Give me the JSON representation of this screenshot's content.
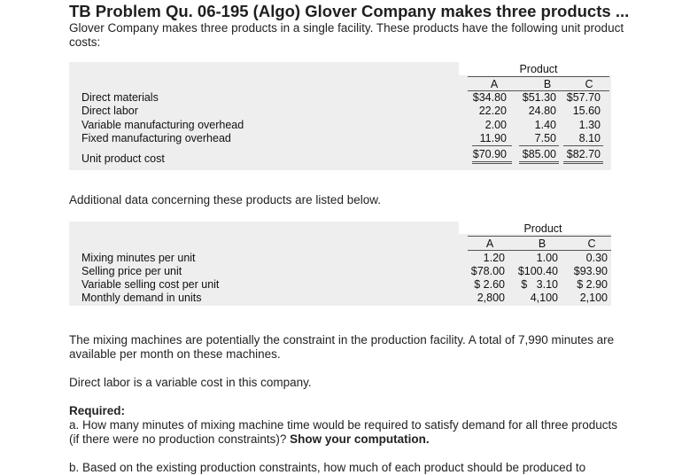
{
  "title": "TB Problem Qu. 06-195 (Algo) Glover Company makes three products ...",
  "intro": "Glover Company makes three products in a single facility. These products have the following unit product costs:",
  "table1": {
    "group_header": "Product",
    "columns": [
      "A",
      "B",
      "C"
    ],
    "rows": [
      {
        "label": "Direct materials",
        "values": [
          "$34.80",
          "$51.30",
          "$57.70"
        ]
      },
      {
        "label": "Direct labor",
        "values": [
          "22.20",
          "24.80",
          "15.60"
        ]
      },
      {
        "label": "Variable manufacturing overhead",
        "values": [
          "2.00",
          "1.40",
          "1.30"
        ]
      },
      {
        "label": "Fixed manufacturing overhead",
        "values": [
          "11.90",
          "7.50",
          "8.10"
        ]
      },
      {
        "label": "Unit product cost",
        "values": [
          "$70.90",
          "$85.00",
          "$82.70"
        ]
      }
    ]
  },
  "additional": "Additional data concerning these products are listed below.",
  "table2": {
    "group_header": "Product",
    "columns": [
      "A",
      "B",
      "C"
    ],
    "rows": [
      {
        "label": "Mixing minutes per unit",
        "values": [
          "1.20",
          "1.00",
          "0.30"
        ]
      },
      {
        "label": "Selling price per unit",
        "values": [
          "$78.00",
          "$100.40",
          "$93.90"
        ]
      },
      {
        "label": "Variable selling cost per unit",
        "values": [
          "$ 2.60",
          "$   3.10",
          "$ 2.90"
        ]
      },
      {
        "label": "Monthly demand in units",
        "values": [
          "2,800",
          "4,100",
          "2,100"
        ]
      }
    ]
  },
  "para1": "The mixing machines are potentially the constraint in the production facility. A total of 7,990 minutes are available per month on these machines.",
  "para2": "Direct labor is a variable cost in this company.",
  "required_label": "Required:",
  "req_a": "a. How many minutes of mixing machine time would be required to satisfy demand for all three products (if there were no production constraints)?",
  "req_a_bold": "Show your computation.",
  "req_b": "b. Based on the existing production constraints, how much of each product should be produced to"
}
